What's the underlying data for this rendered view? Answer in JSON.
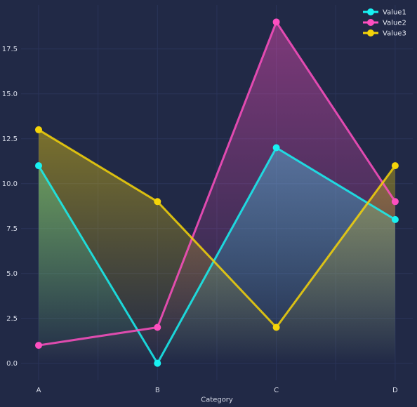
{
  "chart_data": {
    "type": "area",
    "categories": [
      "A",
      "B",
      "C",
      "D"
    ],
    "series": [
      {
        "name": "Value1",
        "values": [
          11,
          0,
          12,
          8
        ],
        "color": "#18f1f2"
      },
      {
        "name": "Value2",
        "values": [
          1,
          2,
          19,
          9
        ],
        "color": "#fd4fc0"
      },
      {
        "name": "Value3",
        "values": [
          13,
          9,
          2,
          11
        ],
        "color": "#f5d409"
      }
    ],
    "y_ticks": [
      "0.0",
      "2.5",
      "5.0",
      "7.5",
      "10.0",
      "12.5",
      "15.0",
      "17.5"
    ],
    "title": "",
    "xlabel": "Category",
    "ylabel": "",
    "ylim": [
      -0.95,
      19.95
    ],
    "grid": true,
    "legend": "top-right",
    "background": "#212946",
    "grid_color": "#2a3459"
  }
}
